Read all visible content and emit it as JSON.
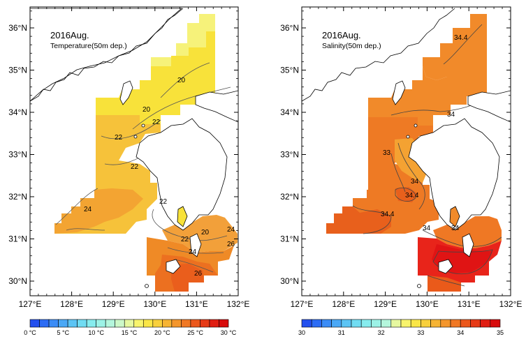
{
  "maps": [
    {
      "title": "2016Aug.",
      "subtitle": "Temperature(50m dep.)",
      "lon_labels": [
        "127°E",
        "128°E",
        "129°E",
        "130°E",
        "131°E",
        "132°E"
      ],
      "lat_labels": [
        "36°N",
        "35°N",
        "34°N",
        "33°N",
        "32°N",
        "31°N",
        "30°N"
      ],
      "contour_labels": [
        "20",
        "20",
        "22",
        "22",
        "22",
        "24",
        "22",
        "20",
        "24",
        "22",
        "24",
        "26",
        "26"
      ],
      "colorbar": {
        "colors": [
          "#2450ee",
          "#2c6cf4",
          "#3b8cf6",
          "#4aa8f6",
          "#5cc4f4",
          "#70dcf2",
          "#86ecee",
          "#9cf2e6",
          "#b4f6dc",
          "#ccf8c8",
          "#e6f8a0",
          "#f8f46c",
          "#fae646",
          "#f8d03c",
          "#f6b434",
          "#f4962c",
          "#f07824",
          "#ec581c",
          "#e63a16",
          "#e01e12",
          "#d80c0c"
        ],
        "labels": [
          "0 °C",
          "5 °C",
          "10 °C",
          "15 °C",
          "20 °C",
          "25 °C",
          "30 °C"
        ]
      }
    },
    {
      "title": "2016Aug.",
      "subtitle": "Salinity(50m dep.)",
      "lon_labels": [
        "127°E",
        "128°E",
        "129°E",
        "130°E",
        "131°E",
        "132°E"
      ],
      "lat_labels": [
        "36°N",
        "35°N",
        "34°N",
        "33°N",
        "32°N",
        "31°N",
        "30°N"
      ],
      "contour_labels": [
        "34.4",
        "34",
        "33",
        "34",
        "34.4",
        "34.4",
        "34",
        "34"
      ],
      "colorbar": {
        "colors": [
          "#2450ee",
          "#2c6cf4",
          "#3b8cf6",
          "#4aa8f6",
          "#5cc4f4",
          "#70dcf2",
          "#86ecee",
          "#9cf2e6",
          "#b4f6dc",
          "#e6f8a0",
          "#f8f46c",
          "#fae646",
          "#f8d03c",
          "#f6b434",
          "#f4962c",
          "#f07824",
          "#ec581c",
          "#e63a16",
          "#e01e12",
          "#d80c0c"
        ],
        "labels": [
          "30",
          "31",
          "32",
          "33",
          "34",
          "35"
        ]
      }
    }
  ]
}
